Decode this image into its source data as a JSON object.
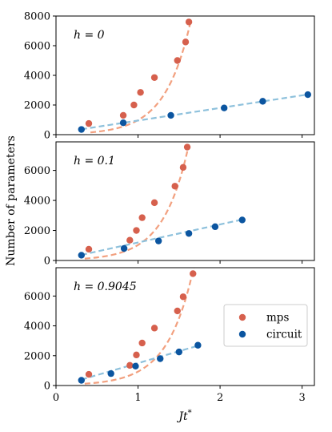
{
  "chart_data": {
    "type": "scatter",
    "ylabel": "Number of parameters",
    "xlabel": "Jt*",
    "xlabel_parts": {
      "main": "Jt",
      "superscript": "*"
    },
    "xlim": [
      0,
      3.15
    ],
    "x_ticks": [
      "0",
      "1",
      "2",
      "3"
    ],
    "grid": false,
    "shared_x_axis": true,
    "legend": {
      "placement": "bottom panel, center-right",
      "entries": [
        "mps",
        "circuit"
      ]
    },
    "colors": {
      "mps": "#d6604d",
      "circuit": "#0b55a0",
      "mps_fit": "#f2a07f",
      "circuit_fit": "#8ec1dc"
    },
    "panels": [
      {
        "label": "h = 0",
        "ylim": [
          0,
          8000
        ],
        "y_ticks": [
          "0",
          "2000",
          "4000",
          "6000",
          "8000"
        ],
        "series": [
          {
            "name": "mps",
            "kind": "points",
            "x": [
              0.4,
              0.82,
              0.95,
              1.03,
              1.2,
              1.48,
              1.58,
              1.62
            ],
            "y": [
              750,
              1300,
              2000,
              2850,
              3850,
              5000,
              6250,
              7600
            ]
          },
          {
            "name": "circuit",
            "kind": "points",
            "x": [
              0.31,
              0.82,
              1.4,
              2.05,
              2.52,
              3.07
            ],
            "y": [
              350,
              800,
              1300,
              1800,
              2250,
              2700
            ]
          }
        ],
        "fits": [
          {
            "series": "mps",
            "kind": "exp",
            "x_range": [
              0.42,
              1.64
            ],
            "a": 40,
            "b": 3.2
          },
          {
            "series": "circuit",
            "kind": "linear",
            "x_range": [
              0.31,
              3.1
            ],
            "slope": 850,
            "intercept": 100
          }
        ]
      },
      {
        "label": "h = 0.1",
        "ylim": [
          0,
          7900
        ],
        "y_ticks": [
          "0",
          "2000",
          "4000",
          "6000"
        ],
        "series": [
          {
            "name": "mps",
            "kind": "points",
            "x": [
              0.4,
              0.9,
              0.98,
              1.05,
              1.2,
              1.45,
              1.55,
              1.6
            ],
            "y": [
              750,
              1350,
              2000,
              2850,
              3850,
              4950,
              6200,
              7550
            ]
          },
          {
            "name": "circuit",
            "kind": "points",
            "x": [
              0.31,
              0.83,
              1.25,
              1.62,
              1.94,
              2.27
            ],
            "y": [
              350,
              800,
              1300,
              1800,
              2250,
              2700
            ]
          }
        ],
        "fits": [
          {
            "series": "mps",
            "kind": "exp",
            "x_range": [
              0.35,
              1.62
            ],
            "a": 40,
            "b": 3.25
          },
          {
            "series": "circuit",
            "kind": "linear",
            "x_range": [
              0.31,
              2.3
            ],
            "slope": 1200,
            "intercept": 0
          }
        ]
      },
      {
        "label": "h = 0.9045",
        "ylim": [
          0,
          7900
        ],
        "y_ticks": [
          "0",
          "2000",
          "4000",
          "6000"
        ],
        "series": [
          {
            "name": "mps",
            "kind": "points",
            "x": [
              0.4,
              0.9,
              0.98,
              1.05,
              1.2,
              1.48,
              1.55,
              1.67
            ],
            "y": [
              750,
              1350,
              2050,
              2850,
              3850,
              5000,
              5950,
              7500
            ]
          },
          {
            "name": "circuit",
            "kind": "points",
            "x": [
              0.31,
              0.67,
              0.97,
              1.27,
              1.5,
              1.73
            ],
            "y": [
              350,
              800,
              1300,
              1800,
              2250,
              2700
            ]
          }
        ],
        "fits": [
          {
            "series": "mps",
            "kind": "exp",
            "x_range": [
              0.35,
              1.77
            ],
            "a": 40,
            "b": 3.15
          },
          {
            "series": "circuit",
            "kind": "linear",
            "x_range": [
              0.31,
              1.75
            ],
            "slope": 1600,
            "intercept": -100
          }
        ]
      }
    ]
  }
}
